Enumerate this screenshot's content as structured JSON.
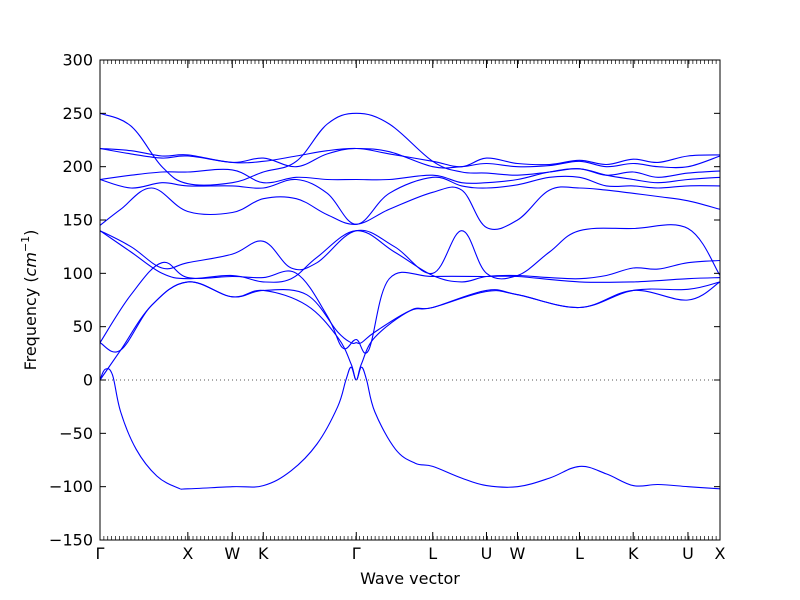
{
  "chart_data": {
    "type": "line",
    "title": "",
    "xlabel": "Wave vector",
    "ylabel": "Frequency ($cm^{-1}$)",
    "ylabel_parts": {
      "text": "Frequency (",
      "math": "cm",
      "sup": "−1",
      "close": ")"
    },
    "ylim": [
      -150,
      300
    ],
    "yticks": [
      -150,
      -100,
      -50,
      0,
      50,
      100,
      150,
      200,
      250,
      300
    ],
    "xlim": [
      0,
      6.0
    ],
    "xticks": [
      {
        "label": "Γ",
        "x": 0.0
      },
      {
        "label": "X",
        "x": 0.85
      },
      {
        "label": "W",
        "x": 1.28
      },
      {
        "label": "K",
        "x": 1.58
      },
      {
        "label": "Γ",
        "x": 2.48
      },
      {
        "label": "L",
        "x": 3.22
      },
      {
        "label": "U",
        "x": 3.74
      },
      {
        "label": "W",
        "x": 4.04
      },
      {
        "label": "L",
        "x": 4.64
      },
      {
        "label": "K",
        "x": 5.16
      },
      {
        "label": "U",
        "x": 5.69
      },
      {
        "label": "X",
        "x": 6.0
      }
    ],
    "zero_line": {
      "y": 0,
      "style": "dotted"
    },
    "color": "#0000ff",
    "grid": false,
    "legend": "none",
    "series": [
      {
        "x": [
          0,
          0.05,
          0.12,
          0.2,
          0.35,
          0.55,
          0.75,
          0.85,
          1.28,
          1.58,
          1.85,
          2.1,
          2.3,
          2.38,
          2.43,
          2.48,
          2.53,
          2.58,
          2.66,
          2.86,
          3.05,
          3.22,
          3.5,
          3.74,
          4.04,
          4.35,
          4.64,
          4.9,
          5.16,
          5.4,
          5.69,
          6.0
        ],
        "y": [
          0,
          10,
          5,
          -30,
          -65,
          -90,
          -101,
          -102,
          -100,
          -99,
          -85,
          -60,
          -25,
          0,
          12,
          0,
          12,
          0,
          -30,
          -65,
          -78,
          -81,
          -92,
          -99,
          -100,
          -92,
          -81,
          -88,
          -99,
          -98,
          -100,
          -102
        ]
      },
      {
        "x": [
          0,
          0.2,
          0.5,
          0.85,
          1.28,
          1.58,
          2.0,
          2.3,
          2.43,
          2.48,
          2.53,
          2.66,
          3.0,
          3.22,
          3.74,
          4.04,
          4.64,
          5.16,
          5.69,
          6.0
        ],
        "y": [
          0,
          28,
          70,
          92,
          78,
          84,
          70,
          40,
          15,
          0,
          15,
          40,
          65,
          68,
          83,
          80,
          68,
          84,
          75,
          92
        ]
      },
      {
        "x": [
          0,
          0.2,
          0.5,
          0.85,
          1.28,
          1.58,
          2.0,
          2.3,
          2.43,
          2.48,
          2.53,
          2.66,
          3.0,
          3.22,
          3.74,
          4.04,
          4.64,
          5.16,
          5.69,
          6.0
        ],
        "y": [
          35,
          28,
          70,
          92,
          78,
          84,
          80,
          45,
          35,
          35,
          35,
          45,
          65,
          68,
          84,
          80,
          68,
          84,
          85,
          92
        ]
      },
      {
        "x": [
          0,
          0.3,
          0.6,
          0.85,
          1.28,
          1.58,
          1.9,
          2.2,
          2.35,
          2.48,
          2.6,
          2.8,
          3.22,
          3.74,
          4.04,
          4.64,
          5.16,
          5.69,
          6.0
        ],
        "y": [
          35,
          80,
          110,
          96,
          97,
          96,
          100,
          60,
          30,
          38,
          28,
          95,
          97,
          97,
          97,
          92,
          92,
          95,
          96
        ]
      },
      {
        "x": [
          0,
          0.3,
          0.6,
          0.85,
          1.28,
          1.58,
          1.85,
          2.1,
          2.48,
          2.85,
          3.22,
          3.5,
          3.74,
          4.04,
          4.35,
          4.64,
          4.9,
          5.16,
          5.4,
          5.69,
          6.0
        ],
        "y": [
          140,
          120,
          100,
          95,
          98,
          92,
          95,
          115,
          140,
          120,
          98,
          92,
          97,
          98,
          96,
          95,
          98,
          105,
          104,
          110,
          112
        ]
      },
      {
        "x": [
          0,
          0.3,
          0.6,
          0.85,
          1.28,
          1.58,
          1.85,
          2.1,
          2.48,
          2.85,
          3.22,
          3.5,
          3.74,
          4.04,
          4.35,
          4.64,
          5.16,
          5.69,
          6.0
        ],
        "y": [
          140,
          125,
          105,
          110,
          118,
          130,
          105,
          110,
          140,
          125,
          100,
          140,
          100,
          98,
          120,
          140,
          142,
          142,
          98
        ]
      },
      {
        "x": [
          0,
          0.2,
          0.5,
          0.85,
          1.28,
          1.58,
          1.9,
          2.2,
          2.48,
          2.8,
          3.22,
          3.5,
          3.74,
          4.04,
          4.35,
          4.64,
          4.9,
          5.16,
          5.4,
          5.69,
          6.0
        ],
        "y": [
          145,
          160,
          180,
          158,
          157,
          170,
          170,
          155,
          146,
          160,
          176,
          178,
          143,
          150,
          178,
          180,
          178,
          175,
          172,
          168,
          160
        ]
      },
      {
        "x": [
          0,
          0.3,
          0.6,
          0.85,
          1.28,
          1.58,
          1.9,
          2.2,
          2.48,
          2.8,
          3.22,
          3.5,
          3.74,
          4.04,
          4.35,
          4.64,
          4.9,
          5.16,
          5.4,
          5.69,
          6.0
        ],
        "y": [
          188,
          180,
          185,
          182,
          182,
          180,
          188,
          175,
          146,
          175,
          190,
          182,
          180,
          183,
          190,
          190,
          182,
          182,
          180,
          182,
          182
        ]
      },
      {
        "x": [
          0,
          0.3,
          0.6,
          0.85,
          1.28,
          1.58,
          1.9,
          2.2,
          2.48,
          2.8,
          3.22,
          3.5,
          3.74,
          4.04,
          4.35,
          4.64,
          4.9,
          5.16,
          5.4,
          5.69,
          6.0
        ],
        "y": [
          188,
          192,
          195,
          195,
          197,
          185,
          190,
          188,
          188,
          188,
          192,
          185,
          185,
          188,
          195,
          198,
          192,
          188,
          185,
          188,
          190
        ]
      },
      {
        "x": [
          0,
          0.3,
          0.6,
          0.85,
          1.28,
          1.58,
          1.9,
          2.2,
          2.48,
          2.8,
          3.22,
          3.5,
          3.74,
          4.04,
          4.35,
          4.64,
          4.9,
          5.16,
          5.4,
          5.69,
          6.0
        ],
        "y": [
          217,
          212,
          208,
          210,
          204,
          205,
          210,
          215,
          217,
          214,
          200,
          200,
          203,
          200,
          201,
          205,
          200,
          203,
          200,
          200,
          210
        ]
      },
      {
        "x": [
          0,
          0.3,
          0.6,
          0.85,
          1.28,
          1.58,
          1.9,
          2.2,
          2.48,
          2.8,
          3.22,
          3.5,
          3.74,
          4.04,
          4.35,
          4.64,
          4.9,
          5.16,
          5.4,
          5.69,
          6.0
        ],
        "y": [
          217,
          215,
          210,
          211,
          204,
          208,
          200,
          212,
          217,
          212,
          205,
          200,
          208,
          203,
          202,
          206,
          202,
          207,
          204,
          210,
          211
        ]
      },
      {
        "x": [
          0,
          0.3,
          0.6,
          0.85,
          1.28,
          1.58,
          1.9,
          2.2,
          2.48,
          2.8,
          3.22,
          3.5,
          3.74,
          4.04,
          4.35,
          4.64,
          4.9,
          5.16,
          5.4,
          5.69,
          6.0
        ],
        "y": [
          250,
          238,
          200,
          184,
          185,
          195,
          205,
          240,
          250,
          240,
          205,
          195,
          194,
          192,
          195,
          198,
          192,
          195,
          190,
          194,
          196
        ]
      }
    ]
  }
}
